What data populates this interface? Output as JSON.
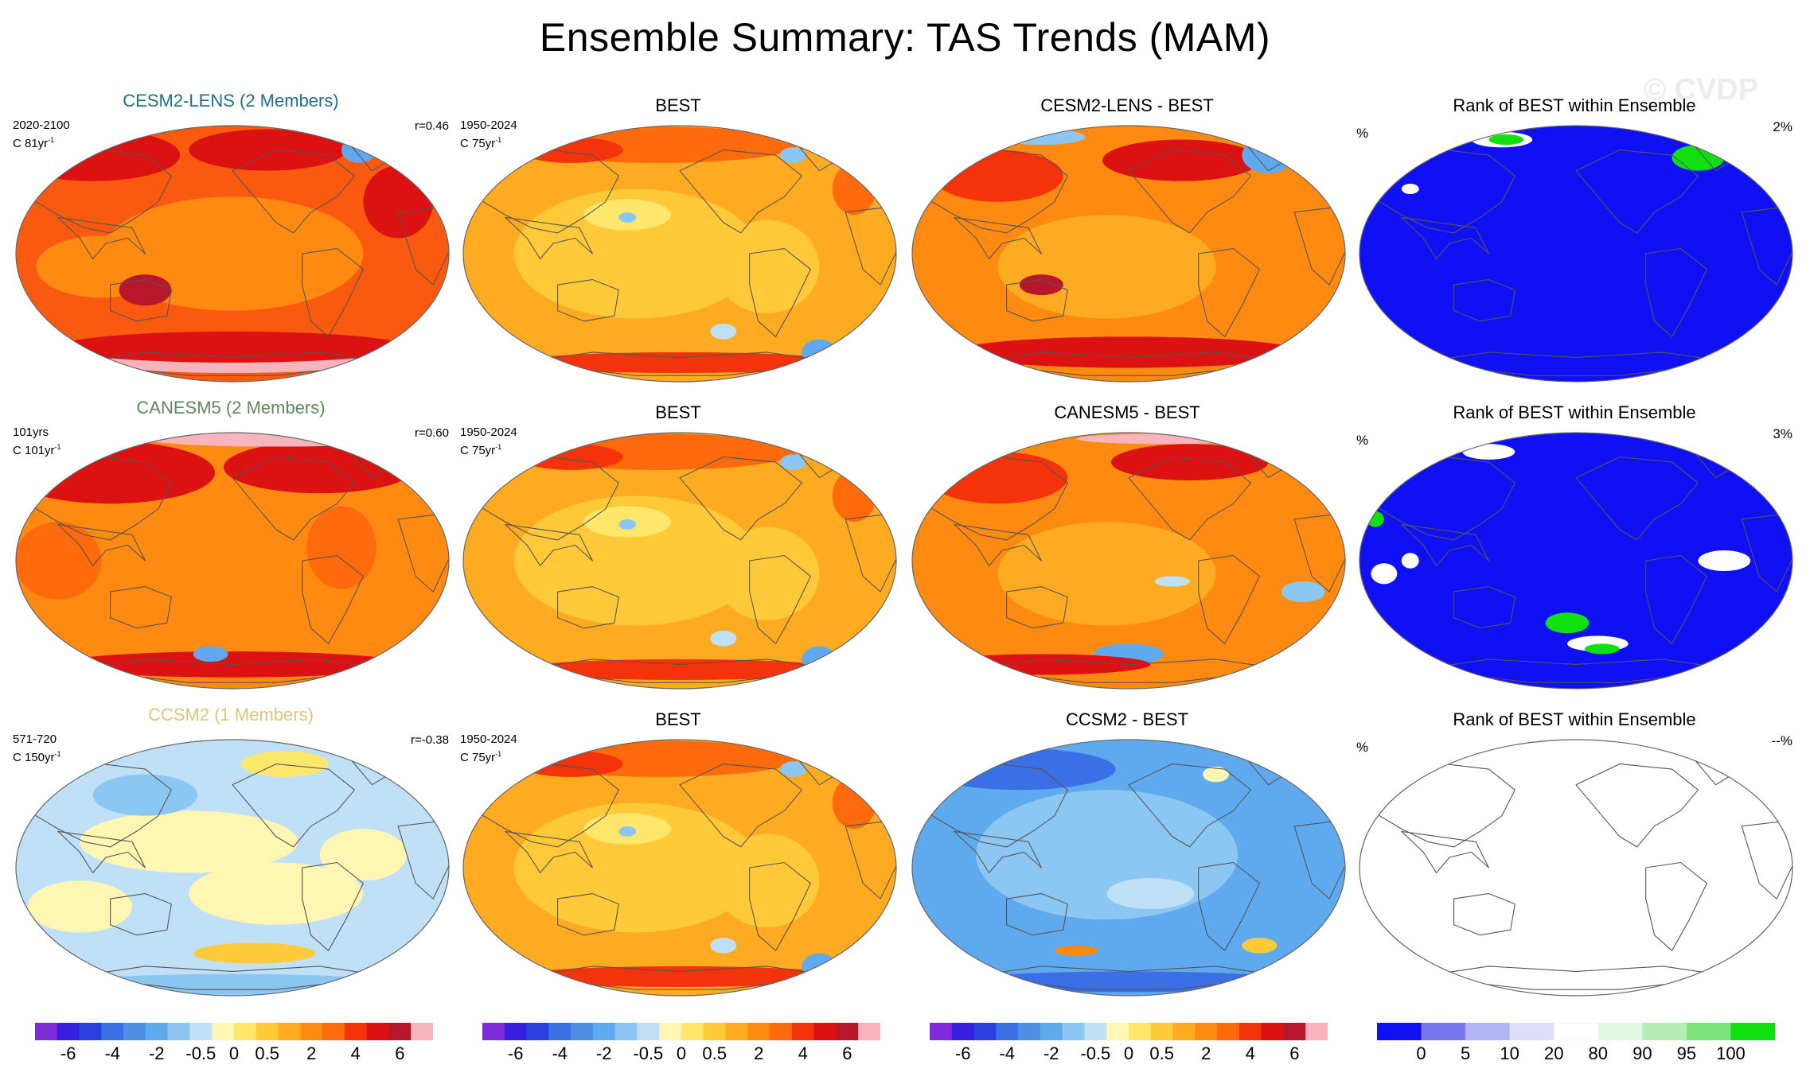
{
  "title": "Ensemble Summary: TAS Trends (MAM)",
  "watermark": "© CVDP",
  "rows": [
    {
      "model": {
        "title": "CESM2-LENS (2 Members)",
        "title_color": "#1f6f8b",
        "period": "2020-2100",
        "units": "C 81yr",
        "corr": "r=0.46",
        "palette": "hot"
      },
      "obs": {
        "title": "BEST",
        "period": "1950-2024",
        "units": "C 75yr",
        "palette": "warm"
      },
      "diff": {
        "title": "CESM2-LENS - BEST",
        "palette": "hot-diff"
      },
      "rank": {
        "title": "Rank of BEST within Ensemble",
        "pct_label": "%",
        "pct_value": "2%",
        "palette": "rank1"
      }
    },
    {
      "model": {
        "title": "CANESM5 (2 Members)",
        "title_color": "#5d8a5d",
        "period": "101yrs",
        "units": "C 101yr",
        "corr": "r=0.60",
        "palette": "hot2"
      },
      "obs": {
        "title": "BEST",
        "period": "1950-2024",
        "units": "C 75yr",
        "palette": "warm"
      },
      "diff": {
        "title": "CANESM5 - BEST",
        "palette": "warm-diff"
      },
      "rank": {
        "title": "Rank of BEST within Ensemble",
        "pct_label": "%",
        "pct_value": "3%",
        "palette": "rank2"
      }
    },
    {
      "model": {
        "title": "CCSM2 (1 Members)",
        "title_color": "#d8c77a",
        "period": "571-720",
        "units": "C 150yr",
        "corr": "r=-0.38",
        "palette": "cool"
      },
      "obs": {
        "title": "BEST",
        "period": "1950-2024",
        "units": "C 75yr",
        "palette": "warm"
      },
      "diff": {
        "title": "CCSM2 - BEST",
        "palette": "blue-diff"
      },
      "rank": {
        "title": "Rank of BEST within Ensemble",
        "pct_label": "%",
        "pct_value": "--%",
        "palette": "blank"
      }
    }
  ],
  "units_superscript": "-1",
  "colorbars": {
    "trend": {
      "colors": [
        "#7f2bd9",
        "#3a1ee0",
        "#2a3fe0",
        "#3b6fe6",
        "#4f8fe8",
        "#5fa9ef",
        "#8cc7f3",
        "#bfe0f7",
        "#fff6b3",
        "#ffe76b",
        "#ffc93a",
        "#ffab21",
        "#ff8a12",
        "#ff6a0c",
        "#f5330b",
        "#dc1111",
        "#b8162a",
        "#f7b4bc"
      ],
      "ticks": [
        "-6",
        "-4",
        "-2",
        "-0.5",
        "0",
        "0.5",
        "2",
        "4",
        "6"
      ]
    },
    "rank": {
      "colors": [
        "#1010f5",
        "#7777f0",
        "#b4b4f4",
        "#dedef9",
        "#ffffff",
        "#e0f7e0",
        "#b4eeb4",
        "#7ee57e",
        "#10e010"
      ],
      "ticks": [
        "0",
        "5",
        "10",
        "20",
        "80",
        "90",
        "95",
        "100"
      ]
    }
  }
}
